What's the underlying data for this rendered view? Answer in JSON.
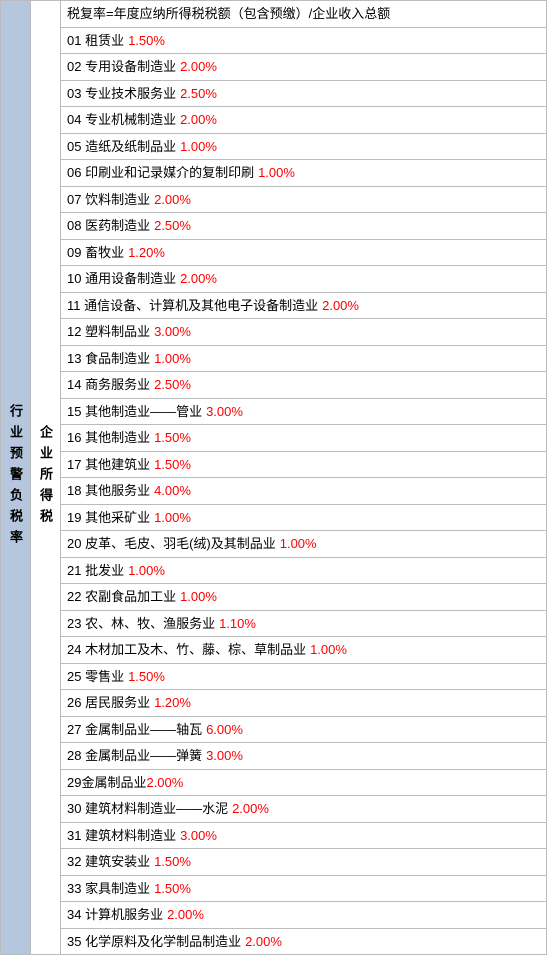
{
  "leftLabel": "行业预警负税率",
  "midLabel": "企业所得税",
  "headerText": "税复率=年度应纳所得税税额（包含预缴）/企业收入总额",
  "textColor": "#000000",
  "rateColor": "#ff0000",
  "leftBgColor": "#b4c7dc",
  "borderColor": "#bbbbbb",
  "rows": [
    {
      "num": "01",
      "name": "租赁业",
      "rate": "1.50%"
    },
    {
      "num": "02",
      "name": "专用设备制造业",
      "rate": "2.00%"
    },
    {
      "num": "03",
      "name": "专业技术服务业",
      "rate": "2.50%"
    },
    {
      "num": "04",
      "name": "专业机械制造业",
      "rate": "2.00%"
    },
    {
      "num": "05",
      "name": "造纸及纸制品业",
      "rate": "1.00%"
    },
    {
      "num": "06",
      "name": "印刷业和记录媒介的复制印刷",
      "rate": "1.00%"
    },
    {
      "num": "07",
      "name": "饮料制造业",
      "rate": "2.00%"
    },
    {
      "num": "08",
      "name": "医药制造业",
      "rate": "2.50%"
    },
    {
      "num": "09",
      "name": "畜牧业",
      "rate": "1.20%"
    },
    {
      "num": "10",
      "name": "通用设备制造业",
      "rate": "2.00%"
    },
    {
      "num": "11",
      "name": "通信设备、计算机及其他电子设备制造业",
      "rate": "2.00%"
    },
    {
      "num": "12",
      "name": "塑料制品业",
      "rate": "3.00%"
    },
    {
      "num": "13",
      "name": "食品制造业",
      "rate": "1.00%"
    },
    {
      "num": "14",
      "name": "商务服务业",
      "rate": "2.50%"
    },
    {
      "num": "15",
      "name": "其他制造业——管业",
      "rate": "3.00%"
    },
    {
      "num": "16",
      "name": "其他制造业",
      "rate": "1.50%"
    },
    {
      "num": "17",
      "name": "其他建筑业",
      "rate": "1.50%"
    },
    {
      "num": "18",
      "name": "其他服务业",
      "rate": "4.00%"
    },
    {
      "num": "19",
      "name": "其他采矿业",
      "rate": "1.00%"
    },
    {
      "num": "20",
      "name": "皮革、毛皮、羽毛(绒)及其制品业",
      "rate": "1.00%"
    },
    {
      "num": "21",
      "name": "批发业",
      "rate": "1.00%"
    },
    {
      "num": "22",
      "name": "农副食品加工业",
      "rate": "1.00%"
    },
    {
      "num": "23",
      "name": "农、林、牧、渔服务业",
      "rate": "1.10%"
    },
    {
      "num": "24",
      "name": "木材加工及木、竹、藤、棕、草制品业",
      "rate": "1.00%"
    },
    {
      "num": "25",
      "name": "零售业",
      "rate": "1.50%"
    },
    {
      "num": "26",
      "name": "居民服务业",
      "rate": "1.20%"
    },
    {
      "num": "27",
      "name": "金属制品业——轴瓦",
      "rate": "6.00%"
    },
    {
      "num": "28",
      "name": "金属制品业——弹簧",
      "rate": "3.00%"
    },
    {
      "num": "29",
      "name": "金属制品业",
      "rate": "2.00%",
      "nospace": true
    },
    {
      "num": "30",
      "name": "建筑材料制造业——水泥",
      "rate": "2.00%"
    },
    {
      "num": "31",
      "name": "建筑材料制造业",
      "rate": "3.00%"
    },
    {
      "num": "32",
      "name": "建筑安装业",
      "rate": "1.50%"
    },
    {
      "num": "33",
      "name": "家具制造业",
      "rate": "1.50%"
    },
    {
      "num": "34",
      "name": "计算机服务业",
      "rate": "2.00%"
    },
    {
      "num": "35",
      "name": "化学原料及化学制品制造业",
      "rate": "2.00%"
    }
  ]
}
